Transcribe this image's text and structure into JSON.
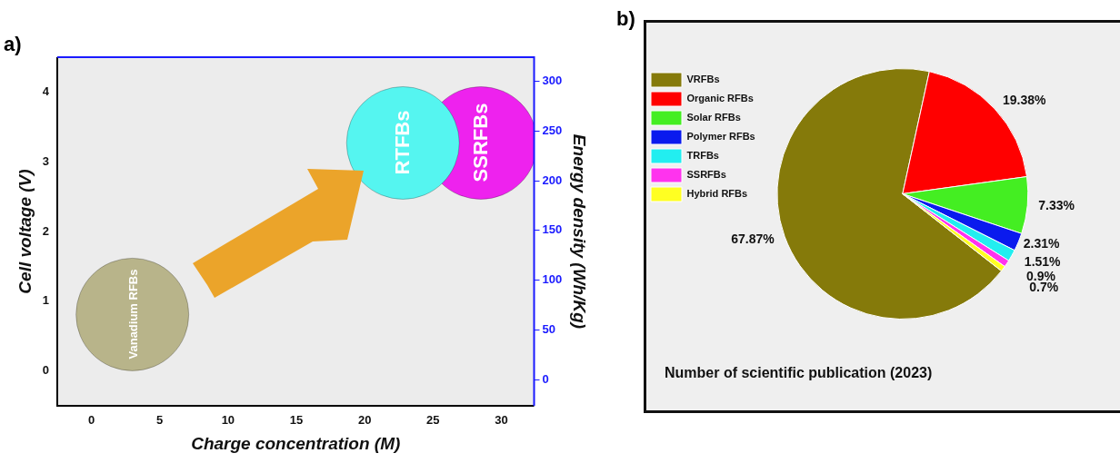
{
  "chart_data": [
    {
      "type": "bubble",
      "title": "a)",
      "xlabel": "Charge concentration (M)",
      "ylabel": "Cell voltage (V)",
      "y2label": "Energy density (Wh/Kg)",
      "xlim": [
        -2.5,
        32.4
      ],
      "xticks": [
        0,
        5,
        10,
        15,
        20,
        25,
        30
      ],
      "ylim": [
        -0.5,
        4.5
      ],
      "yticks": [
        0,
        1,
        2,
        3,
        4
      ],
      "y2lim": [
        -26,
        324
      ],
      "y2ticks": [
        0,
        50,
        100,
        150,
        200,
        250,
        300
      ],
      "series": [
        {
          "name": "Vanadium RFBs",
          "color": "#b8b48a",
          "x": [
            3
          ],
          "values": [
            0.81
          ],
          "sizes": [
            1
          ]
        },
        {
          "name": "RTFBs",
          "color": "#55f5f0",
          "x": [
            22.8
          ],
          "values": [
            3.27
          ],
          "sizes": [
            1
          ]
        },
        {
          "name": "SSRFBs",
          "color": "#ee22ee",
          "x": [
            28.5
          ],
          "values": [
            3.27
          ],
          "sizes": [
            1
          ]
        }
      ],
      "grid": false,
      "legend": false
    },
    {
      "type": "pie",
      "title": "b)",
      "categories": [
        "VRFBs",
        "Organic RFBs",
        "Solar RFBs",
        "Polymer RFBs",
        "TRFBs",
        "SSRFBs",
        "Hybrid RFBs"
      ],
      "values": [
        67.87,
        19.38,
        7.33,
        2.31,
        1.51,
        0.9,
        0.7
      ],
      "colors": [
        "#857a0a",
        "#ff0000",
        "#44ee22",
        "#0a1aee",
        "#22eef0",
        "#ff33ee",
        "#ffff22"
      ],
      "value_labels": [
        "67.87%",
        "19.38%",
        "7.33%",
        "2.31%",
        "1.51%",
        "0.9%",
        "0.7%"
      ],
      "legend": "top left",
      "annotations": [
        "Number of scientific publication (2023)"
      ]
    }
  ]
}
